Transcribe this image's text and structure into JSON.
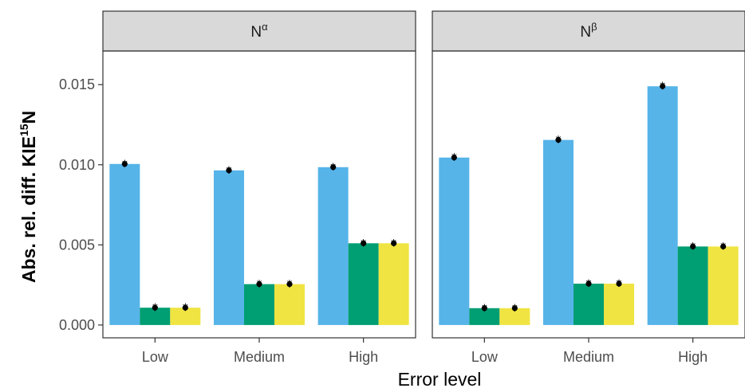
{
  "chart_data": {
    "type": "bar",
    "xlabel": "Error level",
    "ylabel": "Abs. rel. diff. KIE",
    "ylabel_sup": "15",
    "ylabel_suffix": "N",
    "ylim": [
      -0.0008,
      0.0171
    ],
    "yticks": [
      "0.000",
      "0.005",
      "0.010",
      "0.015"
    ],
    "ytick_values": [
      0,
      0.005,
      0.01,
      0.015
    ],
    "categories": [
      "Low",
      "Medium",
      "High"
    ],
    "grid": false,
    "legend": "none",
    "series_colors": [
      "#56B4E9",
      "#009E73",
      "#F0E442"
    ],
    "panels": [
      {
        "strip": "N",
        "strip_sup": "α",
        "series": [
          {
            "values": [
              0.01005,
              0.00965,
              0.00985
            ]
          },
          {
            "values": [
              0.00108,
              0.00255,
              0.0051
            ]
          },
          {
            "values": [
              0.00108,
              0.00255,
              0.0051
            ]
          }
        ]
      },
      {
        "strip": "N",
        "strip_sup": "β",
        "series": [
          {
            "values": [
              0.01045,
              0.01155,
              0.0149
            ]
          },
          {
            "values": [
              0.00105,
              0.00258,
              0.0049
            ]
          },
          {
            "values": [
              0.00105,
              0.00258,
              0.0049
            ]
          }
        ]
      }
    ]
  }
}
